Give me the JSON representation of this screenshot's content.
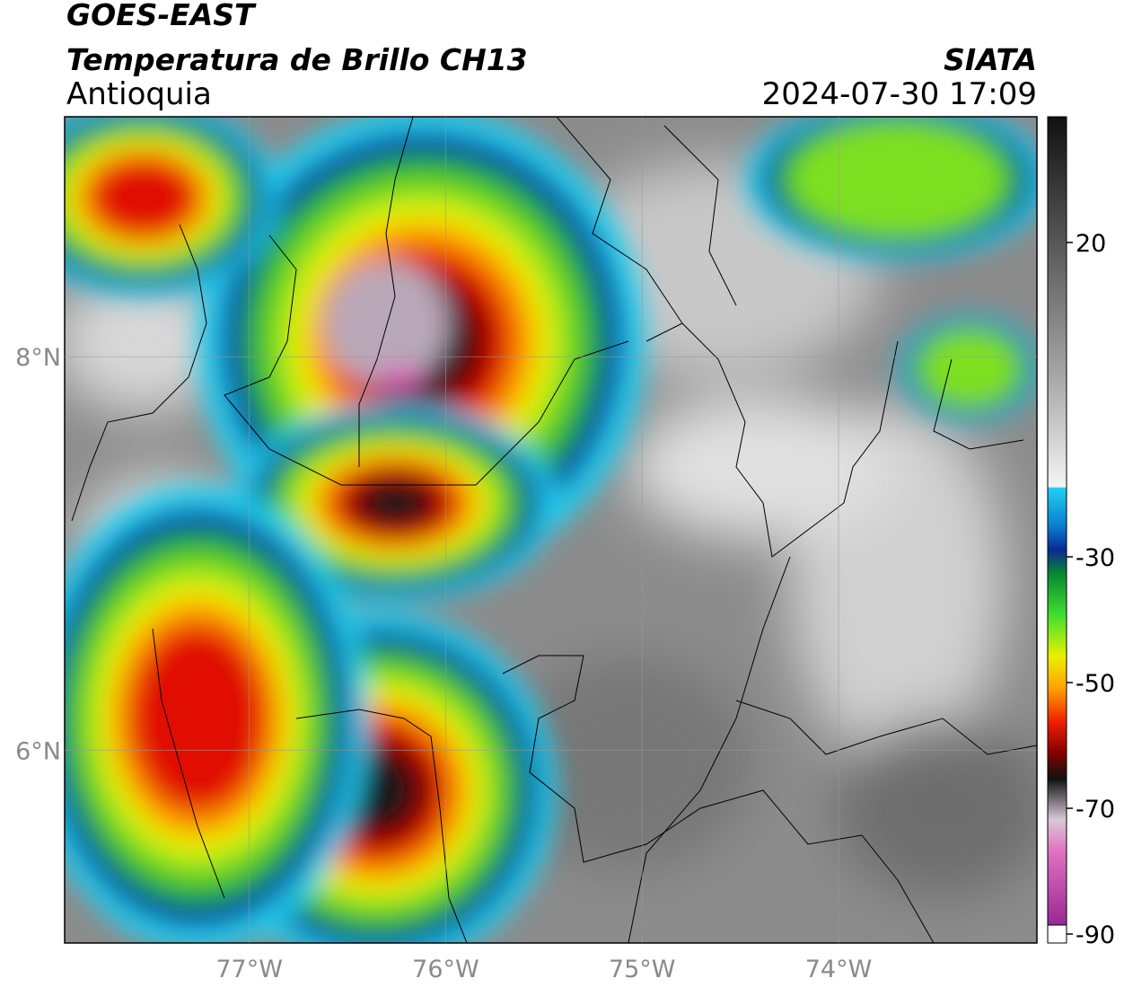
{
  "header": {
    "title": "GOES-EAST",
    "subtitle": "Temperatura de Brillo CH13",
    "region": "Antioquia",
    "source": "SIATA",
    "timestamp": "2024-07-30 17:09"
  },
  "map": {
    "xlim": [
      -77.94,
      -72.99
    ],
    "ylim": [
      5.02,
      9.22
    ],
    "xticks": [
      {
        "value": -77,
        "label": "77°W"
      },
      {
        "value": -76,
        "label": "76°W"
      },
      {
        "value": -75,
        "label": "75°W"
      },
      {
        "value": -74,
        "label": "74°W"
      }
    ],
    "yticks": [
      {
        "value": 8,
        "label": "8°N"
      },
      {
        "value": 6,
        "label": "6°N"
      }
    ],
    "grid": true
  },
  "colorbar": {
    "lim": [
      -90,
      40
    ],
    "ticks": [
      20,
      -30,
      -50,
      -70,
      -90
    ]
  }
}
